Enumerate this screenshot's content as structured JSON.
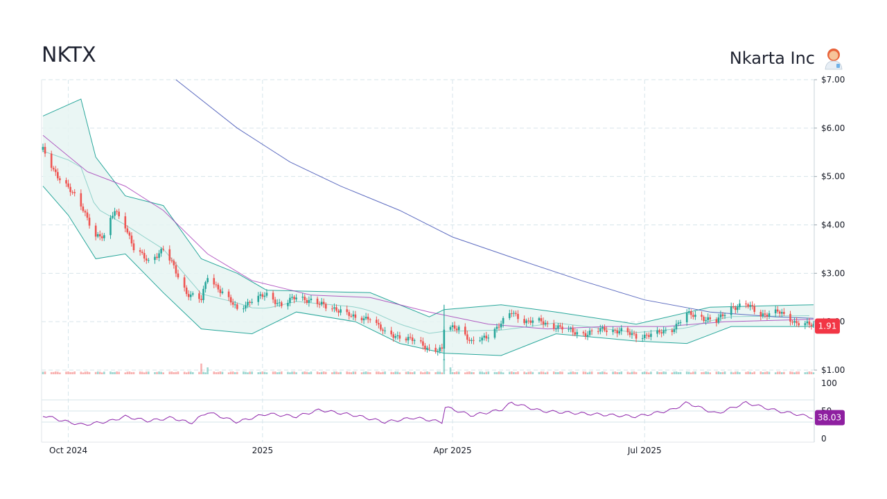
{
  "header": {
    "ticker": "NKTX",
    "company": "Nkarta Inc",
    "company_icon": "scientist-emoji-icon"
  },
  "colors": {
    "up": "#26a69a",
    "down": "#ef5350",
    "bollinger": "#26a69a",
    "bollinger_fill": "#e6f4f2",
    "sma_short": "#9c27b0",
    "sma_long": "#3f51b5",
    "rsi": "#8e24aa",
    "last_price_tag": "#f23645",
    "rsi_tag": "#8e1fa0",
    "grid": "#d6e4ea"
  },
  "chart_data": {
    "type": "candlestick",
    "price_axis": {
      "ylim": [
        1.0,
        7.0
      ],
      "ticks": [
        "$7.00",
        "$6.00",
        "$5.00",
        "$4.00",
        "$3.00",
        "$2.00",
        "$1.00"
      ],
      "tick_values": [
        7,
        6,
        5,
        4,
        3,
        2,
        1
      ]
    },
    "rsi_axis": {
      "ylim": [
        0,
        100
      ],
      "ticks": [
        "100",
        "50",
        "0"
      ],
      "tick_values": [
        100,
        50,
        0
      ]
    },
    "x_axis": {
      "start": "2024-09-19",
      "end": "2025-09-19",
      "ticks": [
        {
          "label": "Oct 2024",
          "date": "2024-10-01"
        },
        {
          "label": "2025",
          "date": "2025-01-01"
        },
        {
          "label": "Apr 2025",
          "date": "2025-04-01"
        },
        {
          "label": "Jul 2025",
          "date": "2025-07-01"
        }
      ]
    },
    "last_price": "1.91",
    "last_rsi": "38.03",
    "close_keypoints": [
      [
        "2024-09-19",
        5.55
      ],
      [
        "2024-09-24",
        5.1
      ],
      [
        "2024-10-01",
        4.8
      ],
      [
        "2024-10-08",
        4.3
      ],
      [
        "2024-10-14",
        3.8
      ],
      [
        "2024-10-18",
        3.75
      ],
      [
        "2024-10-23",
        4.3
      ],
      [
        "2024-10-28",
        4.0
      ],
      [
        "2024-11-01",
        3.5
      ],
      [
        "2024-11-08",
        3.25
      ],
      [
        "2024-11-15",
        3.5
      ],
      [
        "2024-11-19",
        3.2
      ],
      [
        "2024-11-26",
        2.6
      ],
      [
        "2024-12-03",
        2.45
      ],
      [
        "2024-12-06",
        2.95
      ],
      [
        "2024-12-12",
        2.65
      ],
      [
        "2024-12-20",
        2.25
      ],
      [
        "2024-12-27",
        2.45
      ],
      [
        "2025-01-03",
        2.55
      ],
      [
        "2025-01-10",
        2.35
      ],
      [
        "2025-01-17",
        2.5
      ],
      [
        "2025-01-24",
        2.45
      ],
      [
        "2025-01-31",
        2.3
      ],
      [
        "2025-02-07",
        2.25
      ],
      [
        "2025-02-14",
        2.05
      ],
      [
        "2025-02-21",
        2.1
      ],
      [
        "2025-02-28",
        1.75
      ],
      [
        "2025-03-07",
        1.7
      ],
      [
        "2025-03-14",
        1.6
      ],
      [
        "2025-03-21",
        1.45
      ],
      [
        "2025-03-27",
        1.4
      ],
      [
        "2025-03-28",
        1.85
      ],
      [
        "2025-04-04",
        1.9
      ],
      [
        "2025-04-10",
        1.55
      ],
      [
        "2025-04-17",
        1.7
      ],
      [
        "2025-04-24",
        1.95
      ],
      [
        "2025-04-29",
        2.2
      ],
      [
        "2025-05-06",
        2.0
      ],
      [
        "2025-05-13",
        2.0
      ],
      [
        "2025-05-20",
        1.9
      ],
      [
        "2025-05-27",
        1.8
      ],
      [
        "2025-06-04",
        1.75
      ],
      [
        "2025-06-12",
        1.85
      ],
      [
        "2025-06-20",
        1.8
      ],
      [
        "2025-06-27",
        1.7
      ],
      [
        "2025-07-07",
        1.75
      ],
      [
        "2025-07-14",
        1.85
      ],
      [
        "2025-07-21",
        2.15
      ],
      [
        "2025-07-28",
        2.1
      ],
      [
        "2025-08-04",
        2.0
      ],
      [
        "2025-08-11",
        2.3
      ],
      [
        "2025-08-18",
        2.35
      ],
      [
        "2025-08-25",
        2.15
      ],
      [
        "2025-09-02",
        2.2
      ],
      [
        "2025-09-10",
        2.0
      ],
      [
        "2025-09-19",
        1.91
      ]
    ],
    "sma_long_keypoints": [
      [
        "2024-11-21",
        7.0
      ],
      [
        "2024-12-20",
        6.0
      ],
      [
        "2025-01-14",
        5.3
      ],
      [
        "2025-02-07",
        4.8
      ],
      [
        "2025-03-07",
        4.3
      ],
      [
        "2025-04-01",
        3.75
      ],
      [
        "2025-05-01",
        3.3
      ],
      [
        "2025-06-01",
        2.85
      ],
      [
        "2025-07-01",
        2.45
      ],
      [
        "2025-08-01",
        2.2
      ],
      [
        "2025-09-01",
        2.1
      ],
      [
        "2025-09-19",
        2.07
      ]
    ],
    "sma_short_keypoints": [
      [
        "2024-09-19",
        5.85
      ],
      [
        "2024-10-10",
        5.1
      ],
      [
        "2024-10-28",
        4.8
      ],
      [
        "2024-11-15",
        4.3
      ],
      [
        "2024-12-06",
        3.4
      ],
      [
        "2024-12-27",
        2.85
      ],
      [
        "2025-01-24",
        2.55
      ],
      [
        "2025-02-21",
        2.5
      ],
      [
        "2025-03-21",
        2.2
      ],
      [
        "2025-04-18",
        1.95
      ],
      [
        "2025-05-16",
        1.85
      ],
      [
        "2025-06-13",
        1.9
      ],
      [
        "2025-07-11",
        1.9
      ],
      [
        "2025-08-08",
        2.0
      ],
      [
        "2025-09-19",
        2.05
      ]
    ],
    "bollinger_upper_keypoints": [
      [
        "2024-09-19",
        6.25
      ],
      [
        "2024-10-07",
        6.6
      ],
      [
        "2024-10-14",
        5.4
      ],
      [
        "2024-10-28",
        4.6
      ],
      [
        "2024-11-15",
        4.4
      ],
      [
        "2024-12-03",
        3.3
      ],
      [
        "2024-12-20",
        3.0
      ],
      [
        "2025-01-03",
        2.65
      ],
      [
        "2025-02-21",
        2.6
      ],
      [
        "2025-03-21",
        2.1
      ],
      [
        "2025-03-28",
        2.25
      ],
      [
        "2025-04-24",
        2.35
      ],
      [
        "2025-05-20",
        2.2
      ],
      [
        "2025-06-27",
        1.95
      ],
      [
        "2025-08-01",
        2.3
      ],
      [
        "2025-09-19",
        2.35
      ]
    ],
    "bollinger_lower_keypoints": [
      [
        "2024-09-19",
        4.8
      ],
      [
        "2024-10-01",
        4.2
      ],
      [
        "2024-10-14",
        3.3
      ],
      [
        "2024-10-28",
        3.4
      ],
      [
        "2024-11-15",
        2.6
      ],
      [
        "2024-12-03",
        1.85
      ],
      [
        "2024-12-27",
        1.75
      ],
      [
        "2025-01-17",
        2.2
      ],
      [
        "2025-02-14",
        2.0
      ],
      [
        "2025-03-07",
        1.55
      ],
      [
        "2025-03-28",
        1.35
      ],
      [
        "2025-04-24",
        1.3
      ],
      [
        "2025-05-20",
        1.75
      ],
      [
        "2025-06-27",
        1.6
      ],
      [
        "2025-07-21",
        1.55
      ],
      [
        "2025-08-11",
        1.9
      ],
      [
        "2025-09-19",
        1.9
      ]
    ],
    "rsi_keypoints": [
      [
        "2024-09-19",
        42
      ],
      [
        "2024-10-01",
        30
      ],
      [
        "2024-10-08",
        25
      ],
      [
        "2024-10-21",
        32
      ],
      [
        "2024-10-28",
        40
      ],
      [
        "2024-11-08",
        32
      ],
      [
        "2024-11-19",
        38
      ],
      [
        "2024-11-28",
        28
      ],
      [
        "2024-12-06",
        48
      ],
      [
        "2024-12-20",
        30
      ],
      [
        "2025-01-03",
        45
      ],
      [
        "2025-01-17",
        40
      ],
      [
        "2025-01-28",
        52
      ],
      [
        "2025-02-14",
        42
      ],
      [
        "2025-02-28",
        30
      ],
      [
        "2025-03-14",
        38
      ],
      [
        "2025-03-27",
        30
      ],
      [
        "2025-03-28",
        58
      ],
      [
        "2025-04-10",
        42
      ],
      [
        "2025-04-24",
        52
      ],
      [
        "2025-04-29",
        65
      ],
      [
        "2025-05-13",
        50
      ],
      [
        "2025-06-04",
        45
      ],
      [
        "2025-06-27",
        40
      ],
      [
        "2025-07-14",
        52
      ],
      [
        "2025-07-21",
        65
      ],
      [
        "2025-08-04",
        45
      ],
      [
        "2025-08-18",
        65
      ],
      [
        "2025-09-02",
        50
      ],
      [
        "2025-09-10",
        45
      ],
      [
        "2025-09-19",
        38
      ]
    ],
    "volume_spikes": [
      [
        "2024-12-03",
        0.7
      ],
      [
        "2024-12-06",
        0.45
      ],
      [
        "2025-03-28",
        1.0
      ],
      [
        "2025-03-31",
        0.45
      ]
    ]
  }
}
